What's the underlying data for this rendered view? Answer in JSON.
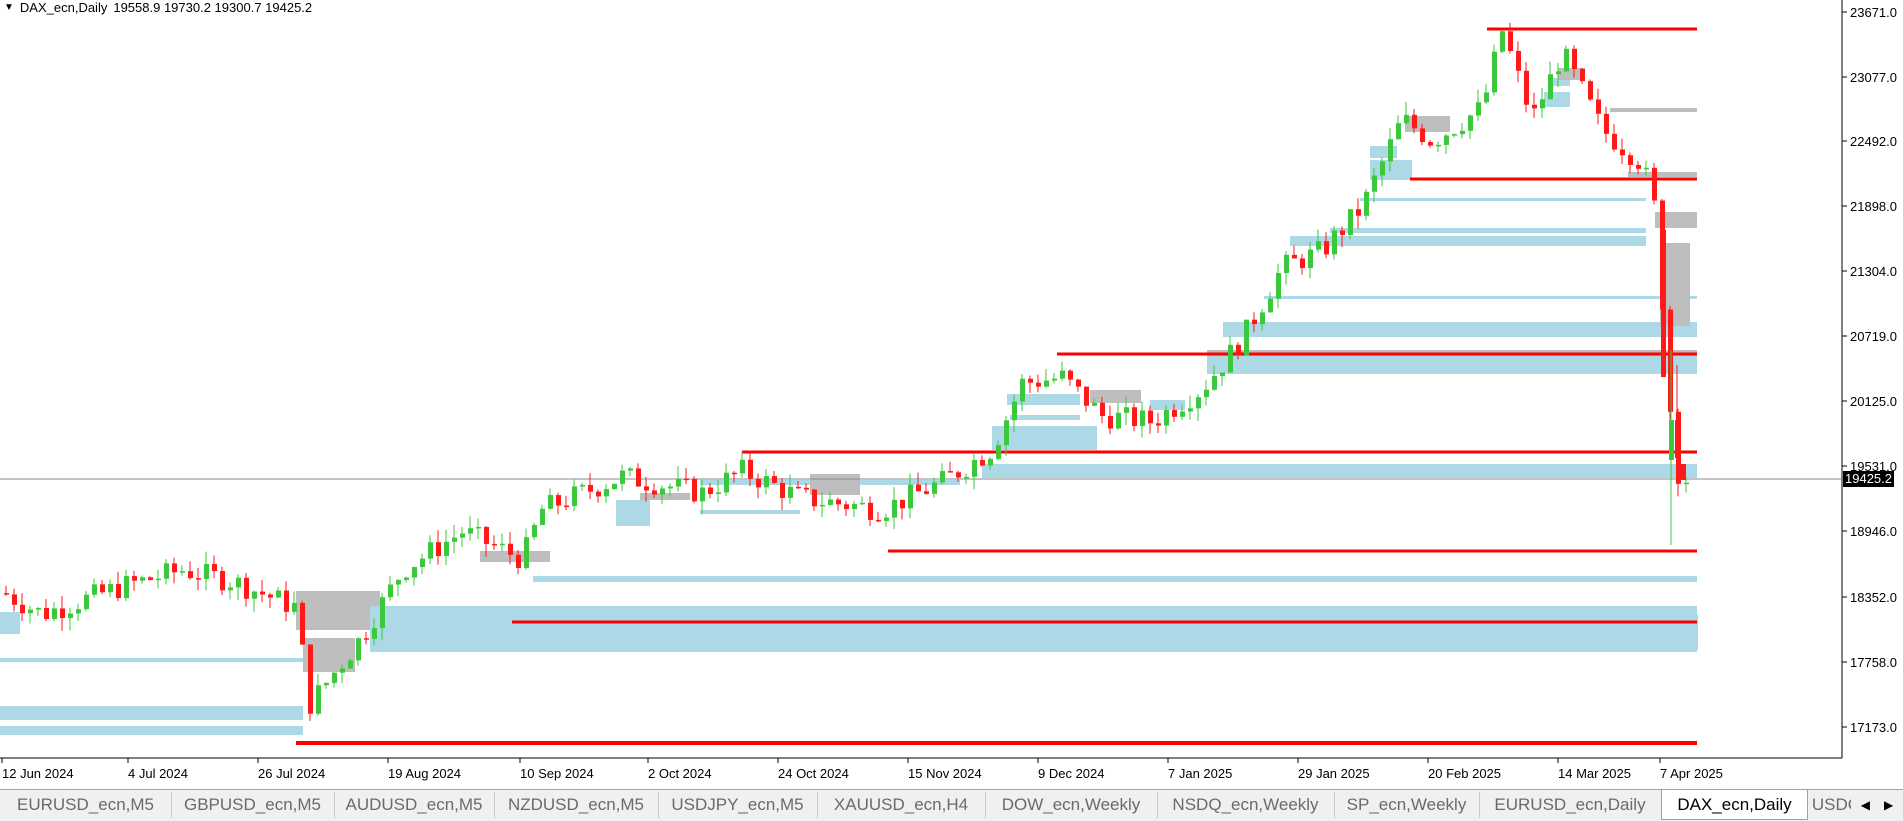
{
  "header": {
    "symbol_info": "DAX_ecn,Daily",
    "ohlc": "19558.9 19730.2 19300.7 19425.2"
  },
  "price_axis": {
    "ticks": [
      "23671.0",
      "23077.0",
      "22492.0",
      "21898.0",
      "21304.0",
      "20719.0",
      "20125.0",
      "19531.0",
      "18946.0",
      "18352.0",
      "17758.0",
      "17173.0"
    ],
    "current_price": "19425.2"
  },
  "time_axis": {
    "labels": [
      "12 Jun 2024",
      "4 Jul 2024",
      "26 Jul 2024",
      "19 Aug 2024",
      "10 Sep 2024",
      "2 Oct 2024",
      "24 Oct 2024",
      "15 Nov 2024",
      "9 Dec 2024",
      "7 Jan 2025",
      "29 Jan 2025",
      "20 Feb 2025",
      "14 Mar 2025",
      "7 Apr 2025"
    ]
  },
  "tabs": [
    {
      "label": "EURUSD_ecn,M5"
    },
    {
      "label": "GBPUSD_ecn,M5"
    },
    {
      "label": "AUDUSD_ecn,M5"
    },
    {
      "label": "NZDUSD_ecn,M5"
    },
    {
      "label": "USDJPY_ecn,M5"
    },
    {
      "label": "XAUUSD_ecn,H4"
    },
    {
      "label": "DOW_ecn,Weekly"
    },
    {
      "label": "NSDQ_ecn,Weekly"
    },
    {
      "label": "SP_ecn,Weekly"
    },
    {
      "label": "EURUSD_ecn,Daily"
    },
    {
      "label": "DAX_ecn,Daily"
    },
    {
      "label": "USDC"
    }
  ],
  "active_tab": "DAX_ecn,Daily",
  "colors": {
    "bull": "#3cc83c",
    "bear": "#ff1a1a",
    "demand_zone": "#add8e6",
    "supply_zone": "#bebebe",
    "level_line": "#ff0000",
    "background": "#ffffff"
  },
  "icons": {
    "menu": "triangle-down-icon",
    "scroll_left": "triangle-left-icon",
    "scroll_right": "triangle-right-icon"
  }
}
